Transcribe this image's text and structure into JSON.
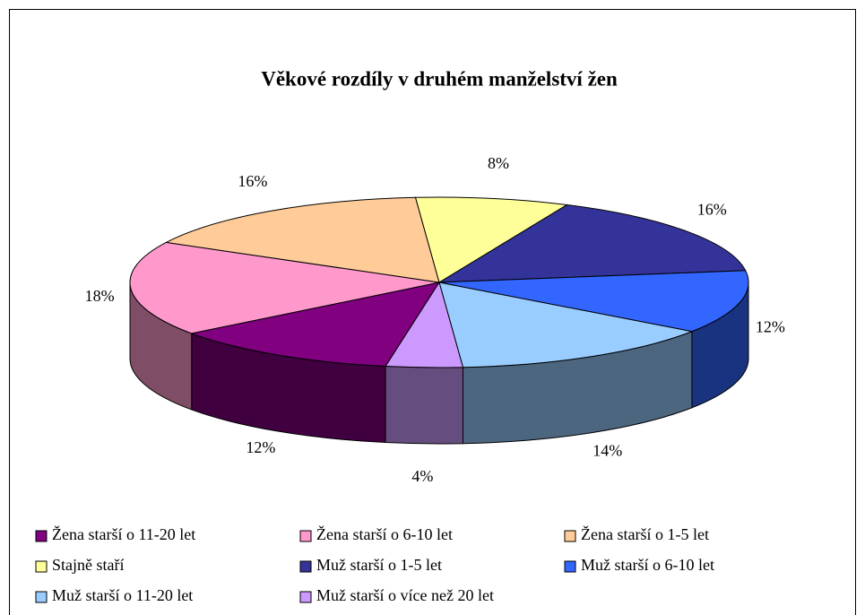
{
  "chart_data": {
    "type": "pie3d",
    "title": "Věkové rozdíly v druhém manželství žen",
    "categories": [
      "Žena starší o 11-20 let",
      "Žena starší o 6-10 let",
      "Žena starší o 1-5 let",
      "Stajně staří",
      "Muž starší o 1-5 let",
      "Muž starší o 6-10 let",
      "Muž starší o 11-20 let",
      "Muž starší o více než 20 let"
    ],
    "values": [
      12,
      18,
      16,
      8,
      16,
      12,
      14,
      4
    ],
    "value_labels": [
      "12%",
      "18%",
      "16%",
      "8%",
      "16%",
      "12%",
      "14%",
      "4%"
    ],
    "colors": [
      "#800080",
      "#ff99cc",
      "#ffcc99",
      "#ffff99",
      "#333399",
      "#3366ff",
      "#99ccff",
      "#cc99ff"
    ]
  }
}
